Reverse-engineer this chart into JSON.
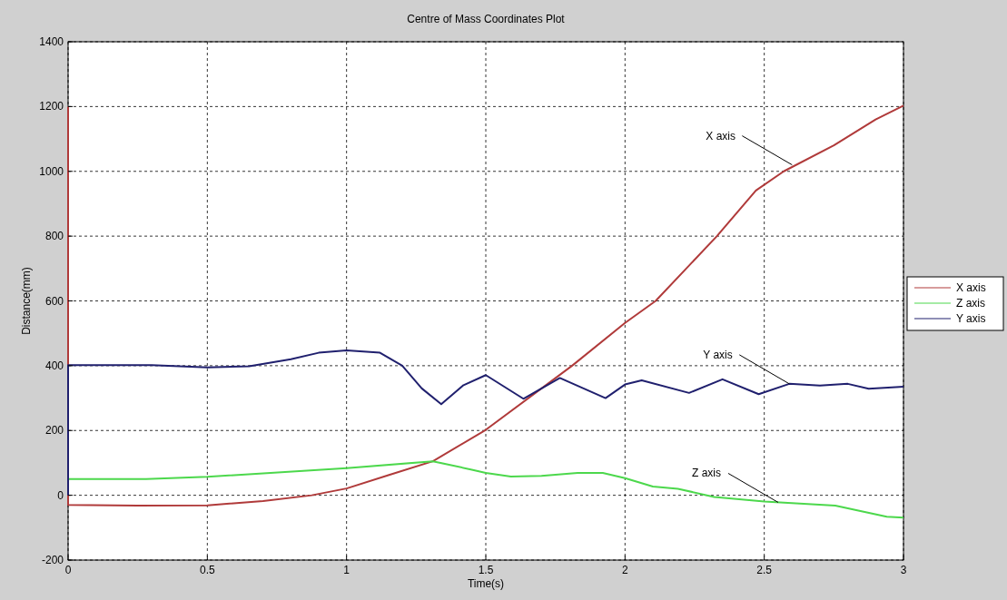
{
  "chart_data": {
    "type": "line",
    "title": "Centre of Mass Coordinates Plot",
    "xlabel": "Time(s)",
    "ylabel": "Distance(mm)",
    "xlim": [
      0,
      3
    ],
    "xticks": [
      0,
      0.5,
      1,
      1.5,
      2,
      2.5,
      3
    ],
    "ylim": [
      -200,
      1400
    ],
    "yticks": [
      -200,
      0,
      200,
      400,
      600,
      800,
      1000,
      1200,
      1400
    ],
    "grid": true,
    "legend": "right",
    "line_style": "solid",
    "marker": "none",
    "series": [
      {
        "name": "X axis",
        "color": "#b03a3a",
        "x": [
          0,
          0,
          0.25,
          0.5,
          0.7,
          0.875,
          1.0,
          1.15,
          1.31,
          1.5,
          1.81,
          2.0,
          2.11,
          2.33,
          2.47,
          2.57,
          2.75,
          2.9,
          3.0
        ],
        "values": [
          1200,
          -30,
          -32,
          -31,
          -18,
          0,
          21,
          62,
          105,
          202,
          400,
          532,
          600,
          800,
          941,
          1000,
          1080,
          1160,
          1203
        ]
      },
      {
        "name": "Z axis",
        "color": "#4cd84c",
        "x": [
          0,
          0.28,
          0.5,
          1.0,
          1.31,
          1.45,
          1.5,
          1.59,
          1.7,
          1.83,
          1.92,
          2.0,
          2.1,
          2.19,
          2.32,
          2.5,
          2.755,
          2.94,
          3.0
        ],
        "values": [
          50,
          50,
          57,
          84,
          105,
          79,
          69,
          58,
          60,
          69,
          69,
          53,
          27,
          20,
          -5,
          -19,
          -32,
          -66,
          -69
        ]
      },
      {
        "name": "Y axis",
        "color": "#20206e",
        "x": [
          0,
          0,
          0.3,
          0.5,
          0.65,
          0.8,
          0.9,
          1.0,
          1.12,
          1.2,
          1.27,
          1.34,
          1.42,
          1.5,
          1.635,
          1.766,
          1.93,
          2.0,
          2.06,
          2.23,
          2.35,
          2.48,
          2.59,
          2.7,
          2.8,
          2.875,
          3.0
        ],
        "values": [
          0,
          402,
          402,
          395,
          398,
          420,
          440,
          447,
          440,
          400,
          330,
          281,
          340,
          371,
          298,
          362,
          300,
          342,
          355,
          316,
          358,
          312,
          344,
          339,
          344,
          329,
          335
        ]
      }
    ],
    "annotations": [
      {
        "text": "X axis",
        "x": 2.6,
        "y": 1020
      },
      {
        "text": "Y axis",
        "x": 2.59,
        "y": 344
      },
      {
        "text": "Z axis",
        "x": 2.55,
        "y": -22
      }
    ]
  }
}
